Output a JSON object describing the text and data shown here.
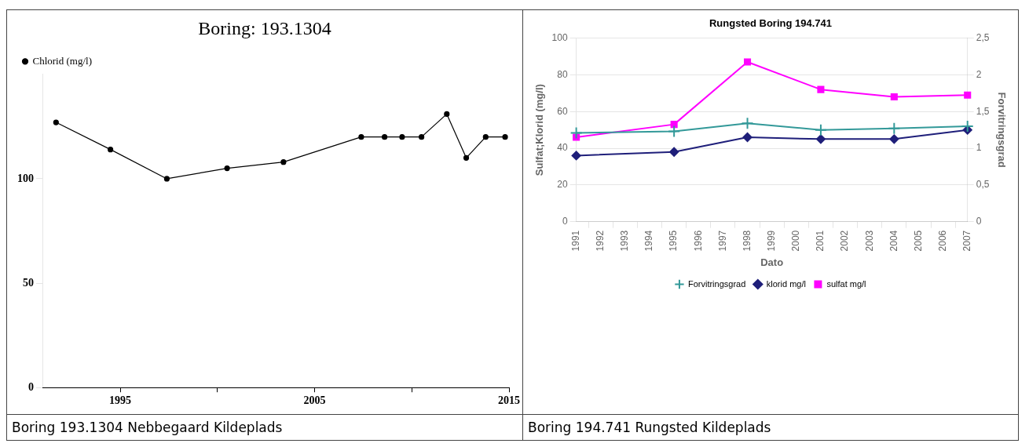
{
  "chart_data": [
    {
      "type": "line",
      "title": "Boring: 193.1304",
      "x": [
        1991.7,
        1994.5,
        1997.4,
        2000.5,
        2003.4,
        2007.4,
        2008.6,
        2009.5,
        2010.5,
        2011.8,
        2012.8,
        2013.8,
        2014.8
      ],
      "series": [
        {
          "name": "Chlorid (mg/l)",
          "color": "#000000",
          "values": [
            127,
            114,
            100,
            105,
            108,
            120,
            120,
            120,
            120,
            131,
            110,
            120,
            120
          ]
        }
      ],
      "xlim": [
        1991,
        2015
      ],
      "xticks": [
        1995,
        {
          "value": 2000,
          "label": null
        },
        2005,
        {
          "value": 2010,
          "label": null
        },
        2015
      ],
      "ylim": [
        0,
        150
      ],
      "yticks": [
        0,
        50,
        100
      ],
      "legend": "top left",
      "marker": "circle",
      "annotations": [
        "Boring 193.1304 Nebbegaard Kildeplads"
      ]
    },
    {
      "type": "line",
      "title": "Rungsted Boring 194.741",
      "categories": [
        "1991",
        "1992",
        "1993",
        "1994",
        "1995",
        "1996",
        "1997",
        "1998",
        "1999",
        "2000",
        "2001",
        "2002",
        "2003",
        "2004",
        "2005",
        "2006",
        "2007"
      ],
      "series": [
        {
          "name": "klorid mg/l",
          "color": "#1f1f7a",
          "marker": "diamond",
          "values": [
            36,
            null,
            null,
            null,
            38,
            null,
            null,
            46,
            null,
            null,
            45,
            null,
            null,
            45,
            null,
            null,
            50
          ]
        },
        {
          "name": "sulfat mg/l",
          "color": "#ff00ff",
          "marker": "square",
          "values": [
            46,
            null,
            null,
            null,
            53,
            null,
            null,
            87,
            null,
            null,
            72,
            null,
            null,
            68,
            null,
            null,
            69
          ]
        },
        {
          "name": "Forvitringsgrad",
          "color": "#339999",
          "marker": "cross",
          "axis": "y2",
          "values": [
            1.21,
            null,
            null,
            null,
            1.23,
            null,
            null,
            1.34,
            null,
            null,
            1.25,
            null,
            null,
            1.27,
            null,
            null,
            1.3
          ]
        }
      ],
      "xlabel": "Dato",
      "ylabel": "Sulfat;Klorid (mg/l)",
      "y2label": "Forvitringsgrad",
      "ylim": [
        0,
        100
      ],
      "yticks": [
        0,
        20,
        40,
        60,
        80,
        100
      ],
      "y2lim": [
        0,
        2.5
      ],
      "y2ticks": [
        0,
        {
          "value": 0.5,
          "label": "0,5"
        },
        1,
        {
          "value": 1.5,
          "label": "1,5"
        },
        2,
        {
          "value": 2.5,
          "label": "2,5"
        }
      ],
      "grid": "y",
      "legend": "bottom",
      "annotations": [
        "Boring 194.741 Rungsted Kildeplads"
      ]
    }
  ]
}
